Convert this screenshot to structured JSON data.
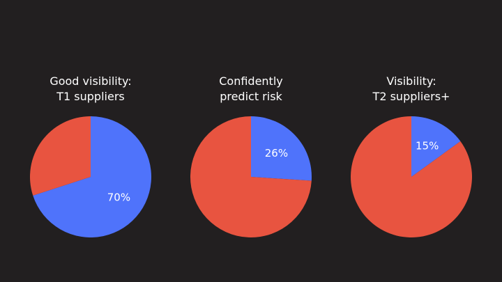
{
  "chart_data": [
    {
      "type": "pie",
      "title_lines": [
        "Good visibility:",
        "T1 suppliers"
      ],
      "slices": [
        {
          "value": 70,
          "label": "70%",
          "color": "#4f73fb"
        },
        {
          "value": 30,
          "label": "",
          "color": "#e85440"
        }
      ]
    },
    {
      "type": "pie",
      "title_lines": [
        "Confidently",
        "predict risk"
      ],
      "slices": [
        {
          "value": 26,
          "label": "26%",
          "color": "#4f73fb"
        },
        {
          "value": 74,
          "label": "",
          "color": "#e85440"
        }
      ]
    },
    {
      "type": "pie",
      "title_lines": [
        "Visibility:",
        "T2 suppliers+"
      ],
      "slices": [
        {
          "value": 15,
          "label": "15%",
          "color": "#4f73fb"
        },
        {
          "value": 85,
          "label": "",
          "color": "#e85440"
        }
      ]
    }
  ],
  "background_color": "#221f20"
}
